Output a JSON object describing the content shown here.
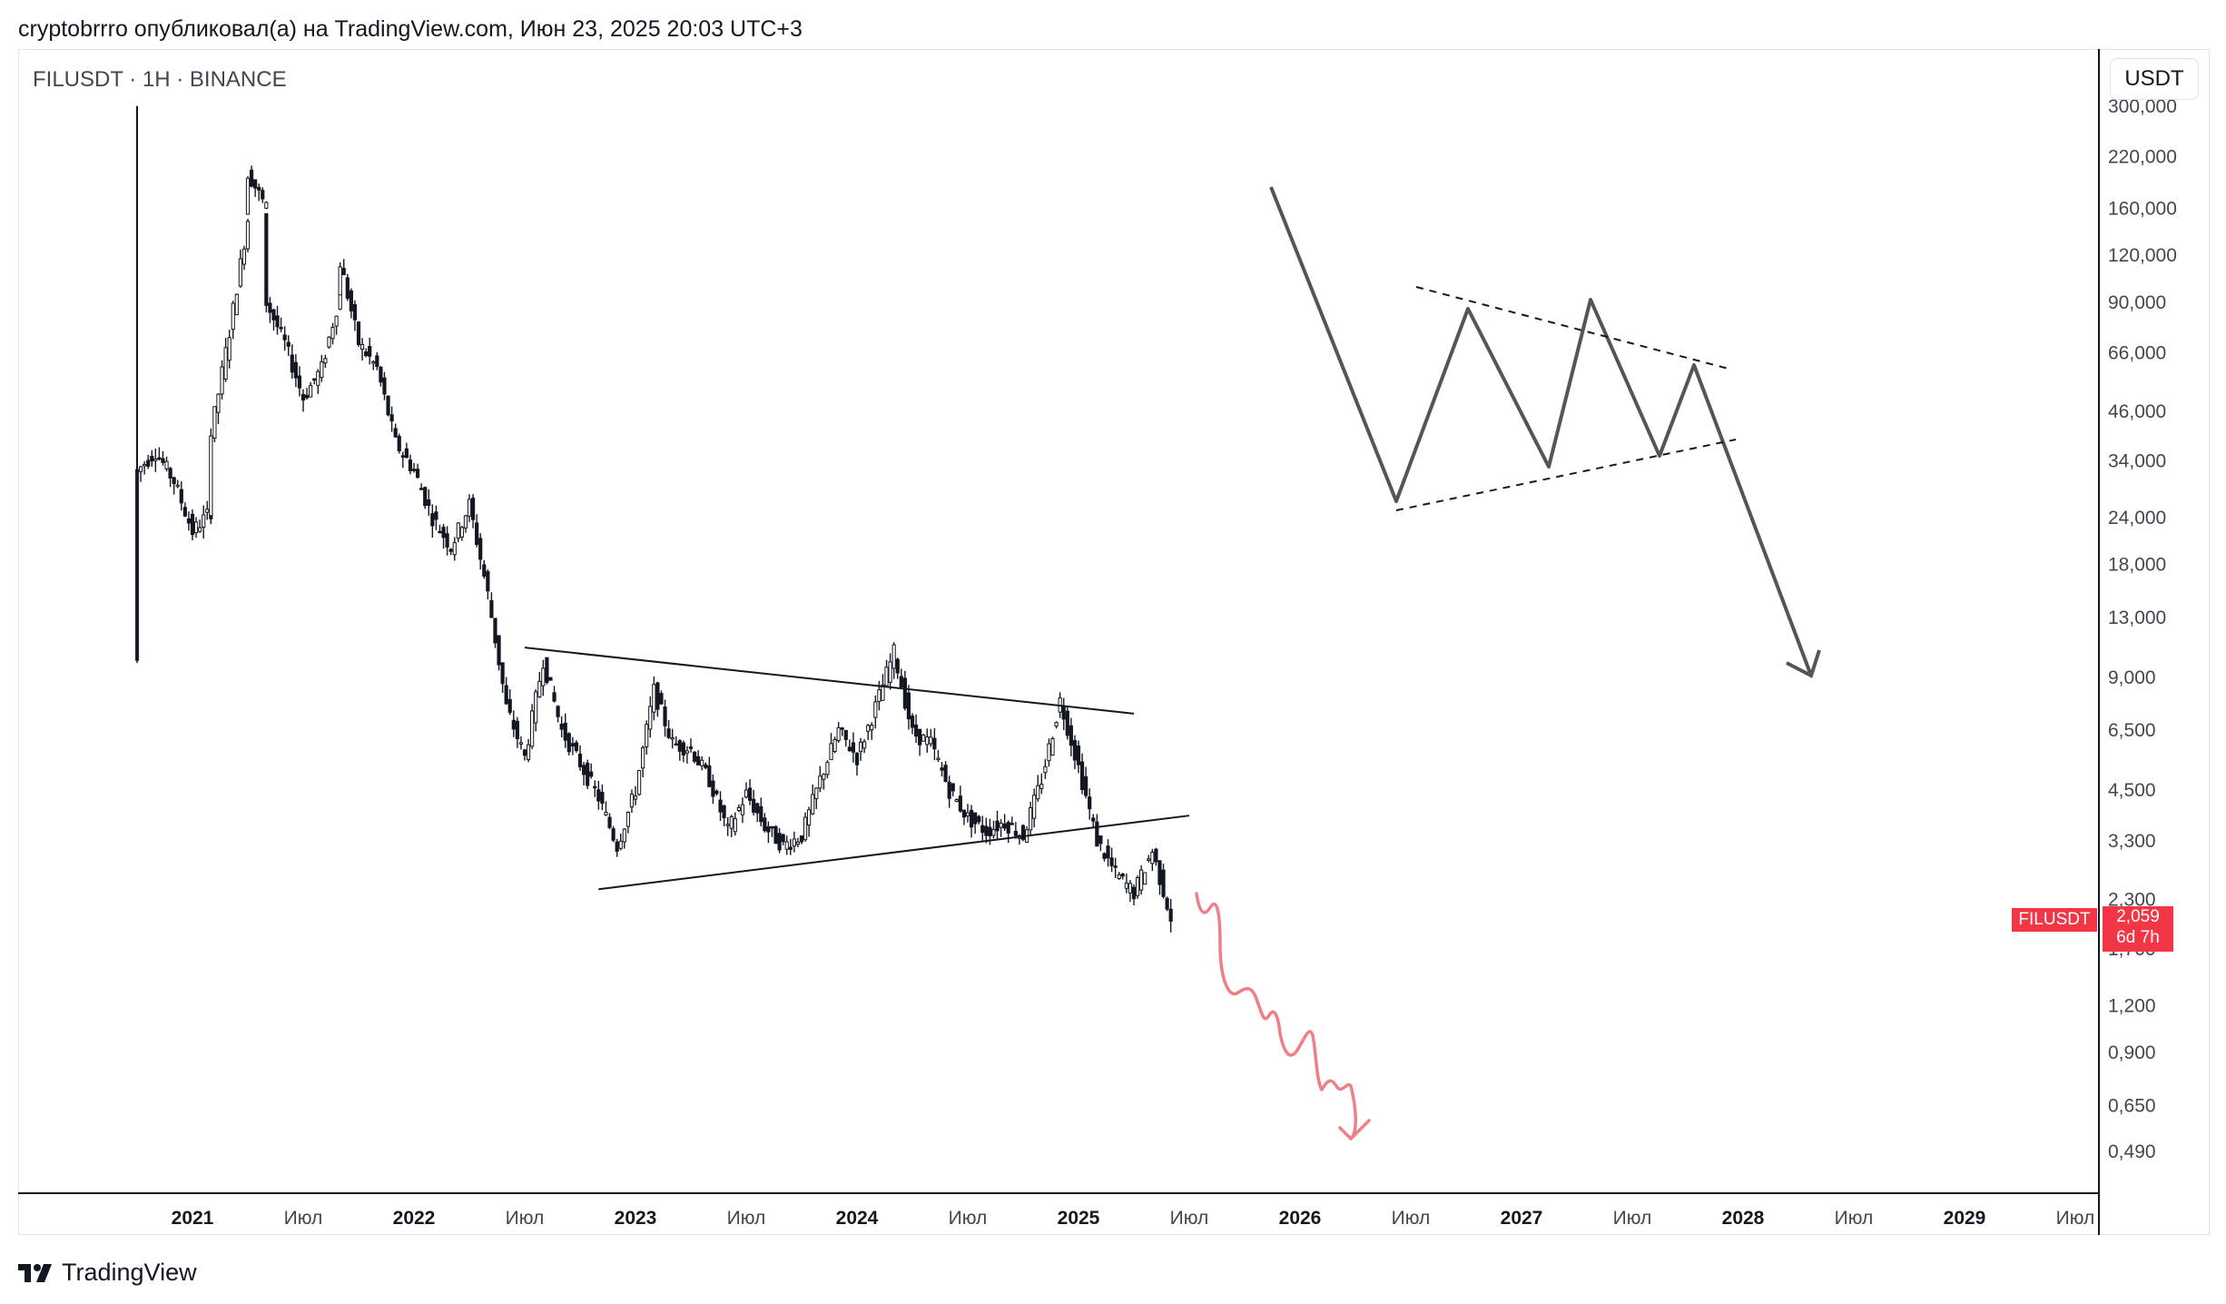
{
  "header": {
    "attribution": "cryptobrrro опубликовал(а) на TradingView.com, Июн 23, 2025 20:03 UTC+3"
  },
  "chart_data": {
    "type": "candlestick",
    "symbol_label": "FILUSDT · 1H · BINANCE",
    "currency": "USDT",
    "y_scale": "log",
    "y_ticks": [
      "0,490",
      "0,650",
      "0,900",
      "1,200",
      "1,700",
      "2,300",
      "3,300",
      "4,500",
      "6,500",
      "9,000",
      "13,000",
      "18,000",
      "24,000",
      "34,000",
      "46,000",
      "66,000",
      "90,000",
      "120,000",
      "160,000",
      "220,000",
      "300,000"
    ],
    "x_ticks": [
      {
        "label": "2021",
        "year": true
      },
      {
        "label": "Июл",
        "year": false
      },
      {
        "label": "2022",
        "year": true
      },
      {
        "label": "Июл",
        "year": false
      },
      {
        "label": "2023",
        "year": true
      },
      {
        "label": "Июл",
        "year": false
      },
      {
        "label": "2024",
        "year": true
      },
      {
        "label": "Июл",
        "year": false
      },
      {
        "label": "2025",
        "year": true
      },
      {
        "label": "Июл",
        "year": false
      },
      {
        "label": "2026",
        "year": true
      },
      {
        "label": "Июл",
        "year": false
      },
      {
        "label": "2027",
        "year": true
      },
      {
        "label": "Июл",
        "year": false
      },
      {
        "label": "2028",
        "year": true
      },
      {
        "label": "Июл",
        "year": false
      },
      {
        "label": "2029",
        "year": true
      },
      {
        "label": "Июл",
        "year": false
      }
    ],
    "price_path": [
      [
        "2020-10",
        10
      ],
      [
        "2020-10",
        32
      ],
      [
        "2020-11",
        36
      ],
      [
        "2020-12",
        30
      ],
      [
        "2021-01",
        22
      ],
      [
        "2021-02",
        25
      ],
      [
        "2021-02",
        40
      ],
      [
        "2021-03",
        75
      ],
      [
        "2021-04",
        150
      ],
      [
        "2021-04",
        200
      ],
      [
        "2021-05",
        160
      ],
      [
        "2021-05",
        90
      ],
      [
        "2021-06",
        70
      ],
      [
        "2021-07",
        50
      ],
      [
        "2021-08",
        60
      ],
      [
        "2021-09",
        95
      ],
      [
        "2021-09",
        115
      ],
      [
        "2021-10",
        70
      ],
      [
        "2021-11",
        60
      ],
      [
        "2021-12",
        38
      ],
      [
        "2022-01",
        32
      ],
      [
        "2022-02",
        24
      ],
      [
        "2022-03",
        20
      ],
      [
        "2022-04",
        26
      ],
      [
        "2022-05",
        15
      ],
      [
        "2022-06",
        7.5
      ],
      [
        "2022-07",
        5.5
      ],
      [
        "2022-08",
        10
      ],
      [
        "2022-09",
        6.5
      ],
      [
        "2022-10",
        5.3
      ],
      [
        "2022-11",
        4.3
      ],
      [
        "2022-12",
        3.2
      ],
      [
        "2023-01",
        4.5
      ],
      [
        "2023-02",
        8.3
      ],
      [
        "2023-03",
        6.0
      ],
      [
        "2023-04",
        5.8
      ],
      [
        "2023-05",
        4.8
      ],
      [
        "2023-06",
        3.5
      ],
      [
        "2023-07",
        4.4
      ],
      [
        "2023-08",
        3.6
      ],
      [
        "2023-09",
        3.2
      ],
      [
        "2023-10",
        3.4
      ],
      [
        "2023-11",
        4.8
      ],
      [
        "2023-12",
        6.5
      ],
      [
        "2024-01",
        5.5
      ],
      [
        "2024-02",
        7.5
      ],
      [
        "2024-03",
        10.5
      ],
      [
        "2024-04",
        6.4
      ],
      [
        "2024-05",
        6.0
      ],
      [
        "2024-06",
        4.5
      ],
      [
        "2024-07",
        3.8
      ],
      [
        "2024-08",
        3.5
      ],
      [
        "2024-09",
        3.7
      ],
      [
        "2024-10",
        3.4
      ],
      [
        "2024-11",
        4.8
      ],
      [
        "2024-12",
        7.8
      ],
      [
        "2025-01",
        5.2
      ],
      [
        "2025-02",
        3.3
      ],
      [
        "2025-03",
        2.7
      ],
      [
        "2025-04",
        2.4
      ],
      [
        "2025-05",
        3.1
      ],
      [
        "2025-06",
        2.06
      ]
    ],
    "last_price": {
      "symbol": "FILUSDT",
      "value": "2,059",
      "countdown": "6d 7h"
    },
    "drawings": {
      "triangle_upper": [
        [
          "2022-07",
          10.8
        ],
        [
          "2025-04",
          7.2
        ]
      ],
      "triangle_lower": [
        [
          "2022-11",
          2.45
        ],
        [
          "2025-07",
          3.85
        ]
      ],
      "projection_wave": [
        [
          1.52
        ],
        [
          0.93
        ]
      ]
    }
  },
  "brand": {
    "name": "TradingView"
  }
}
